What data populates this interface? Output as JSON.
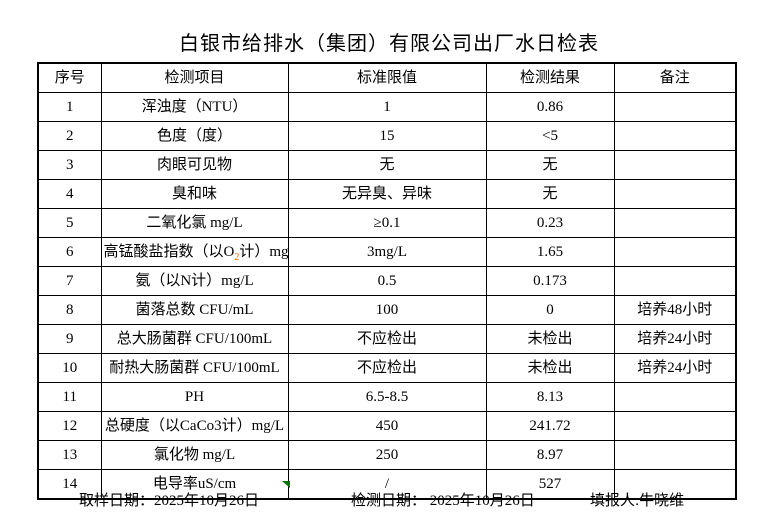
{
  "title": "白银市给排水（集团）有限公司出厂水日检表",
  "colors": {
    "subscript_accent": "#ff6600",
    "marker_green": "#007500",
    "border": "#000000",
    "background": "#ffffff"
  },
  "table": {
    "headers": [
      "序号",
      "检测项目",
      "标准限值",
      "检测结果",
      "备注"
    ],
    "rows": [
      {
        "no": "1",
        "item": "浑浊度（NTU）",
        "limit": "1",
        "result": "0.86",
        "note": ""
      },
      {
        "no": "2",
        "item": "色度（度）",
        "limit": "15",
        "result": "<5",
        "note": ""
      },
      {
        "no": "3",
        "item": "肉眼可见物",
        "limit": "无",
        "result": "无",
        "note": ""
      },
      {
        "no": "4",
        "item": "臭和味",
        "limit": "无异臭、异味",
        "result": "无",
        "note": ""
      },
      {
        "no": "5",
        "item": "二氧化氯 mg/L",
        "limit": "≥0.1",
        "result": "0.23",
        "note": ""
      },
      {
        "no": "6",
        "item_prefix": "高锰酸盐指数（以O",
        "item_sub": "2",
        "item_suffix": "计）mg/L",
        "limit": "3mg/L",
        "result": "1.65",
        "note": ""
      },
      {
        "no": "7",
        "item": "氨（以N计）mg/L",
        "limit": "0.5",
        "result": "0.173",
        "note": ""
      },
      {
        "no": "8",
        "item": "菌落总数 CFU/mL",
        "limit": "100",
        "result": "0",
        "note": "培养48小时"
      },
      {
        "no": "9",
        "item": "总大肠菌群 CFU/100mL",
        "limit": "不应检出",
        "result": "未检出",
        "note": "培养24小时"
      },
      {
        "no": "10",
        "item": "耐热大肠菌群 CFU/100mL",
        "limit": "不应检出",
        "result": "未检出",
        "note": "培养24小时"
      },
      {
        "no": "11",
        "item": "PH",
        "limit": "6.5-8.5",
        "result": "8.13",
        "note": ""
      },
      {
        "no": "12",
        "item": "总硬度（以CaCo3计）mg/L",
        "limit": "450",
        "result": "241.72",
        "note": ""
      },
      {
        "no": "13",
        "item": "氯化物 mg/L",
        "limit": "250",
        "result": "8.97",
        "note": ""
      },
      {
        "no": "14",
        "item": "电导率uS/cm",
        "limit": "/",
        "result": "527",
        "note": ""
      }
    ]
  },
  "footer": {
    "sampling": "取样日期：2025年10月26日",
    "testing": "检测日期： 2025年10月26日",
    "reporter": "填报人:牛晓维"
  }
}
